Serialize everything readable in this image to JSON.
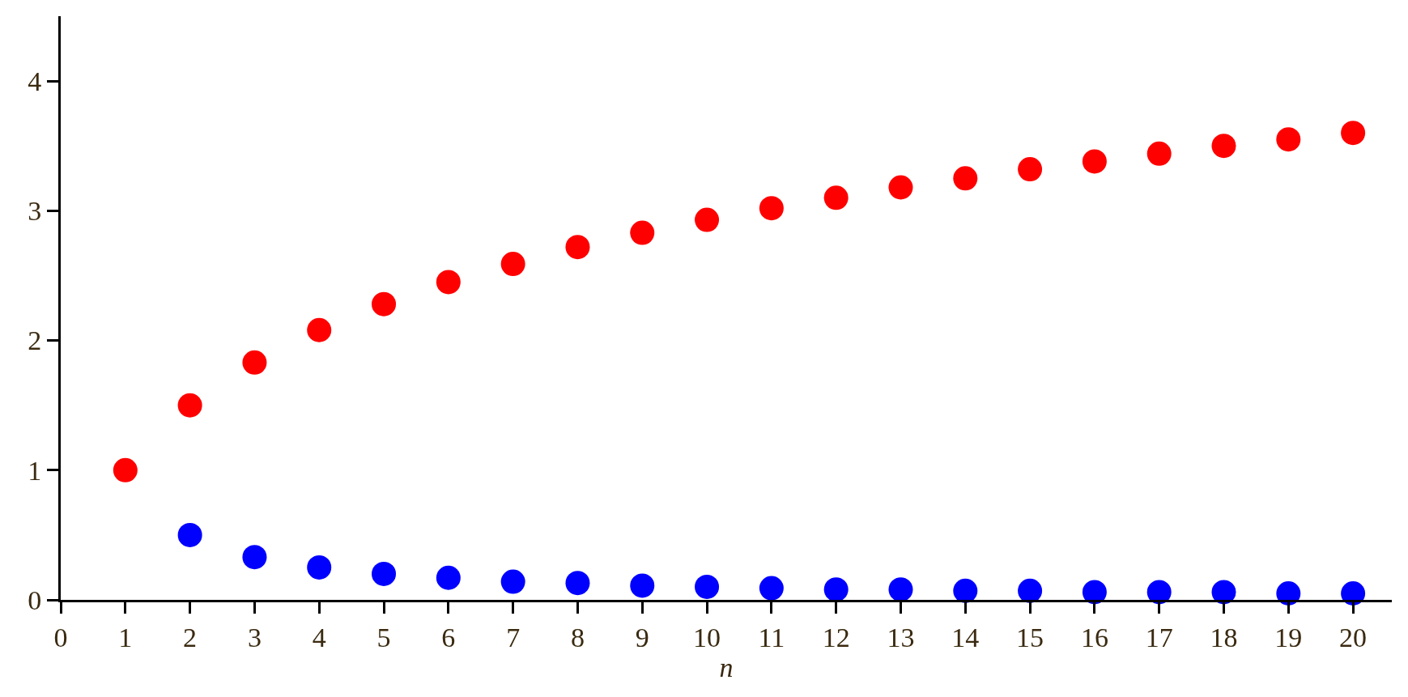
{
  "chart_data": {
    "type": "scatter",
    "xlabel": "n",
    "x": [
      1,
      2,
      3,
      4,
      5,
      6,
      7,
      8,
      9,
      10,
      11,
      12,
      13,
      14,
      15,
      16,
      17,
      18,
      19,
      20
    ],
    "series": [
      {
        "color": "#ff0000",
        "values": [
          1,
          1.5,
          1.83,
          2.08,
          2.28,
          2.45,
          2.59,
          2.72,
          2.83,
          2.93,
          3.02,
          3.1,
          3.18,
          3.25,
          3.32,
          3.38,
          3.44,
          3.5,
          3.55,
          3.6
        ]
      },
      {
        "color": "#0000ff",
        "values": [
          null,
          0.5,
          0.33,
          0.25,
          0.2,
          0.17,
          0.14,
          0.13,
          0.11,
          0.1,
          0.09,
          0.08,
          0.08,
          0.07,
          0.07,
          0.06,
          0.06,
          0.06,
          0.05,
          0.05
        ]
      }
    ],
    "xlim": [
      0,
      20.6
    ],
    "ylim": [
      0,
      4.5
    ],
    "xticks": [
      0,
      1,
      2,
      3,
      4,
      5,
      6,
      7,
      8,
      9,
      10,
      11,
      12,
      13,
      14,
      15,
      16,
      17,
      18,
      19,
      20
    ],
    "yticks": [
      0,
      1,
      2,
      3,
      4
    ],
    "grid": false,
    "legend": false,
    "marker": "circle"
  }
}
